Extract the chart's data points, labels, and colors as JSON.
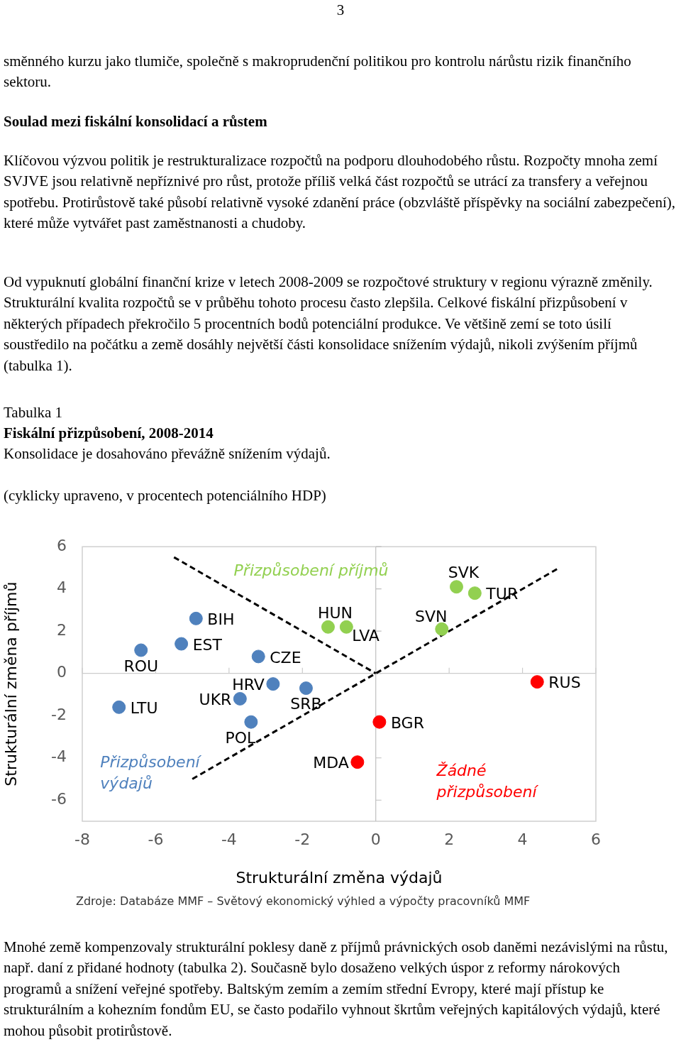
{
  "chart_data": {
    "type": "scatter",
    "title": "Fiskální přizpůsobení, 2008-2014",
    "subtitle": "Konsolidace je dosahováno převážně snížením výdajů.\n\n(cyklicky upraveno, v procentech potenciálního HDP)",
    "xlabel": "Strukturální změna výdajů",
    "ylabel": "Strukturální změna příjmů",
    "xlim": [
      -8,
      6
    ],
    "xticks": [
      -8,
      -6,
      -4,
      -2,
      0,
      2,
      4,
      6
    ],
    "ylim": [
      -7,
      6
    ],
    "yticks": [
      -6,
      -4,
      -2,
      0,
      2,
      4,
      6
    ],
    "grid": false,
    "legend": false,
    "marker": "circle",
    "ref_lines": [
      {
        "axis": "x",
        "value": 0,
        "color": "#bfbfbf"
      },
      {
        "axis": "y",
        "value": 0,
        "color": "#cccccc"
      }
    ],
    "series": [
      {
        "color": "#4f81bd",
        "x": [
          -4.9,
          -5.3,
          -6.4,
          -3.2,
          -2.8,
          -1.9,
          -3.7,
          -7.0,
          -3.4
        ],
        "values": [
          2.6,
          1.4,
          1.1,
          0.8,
          -0.5,
          -0.7,
          -1.2,
          -1.6,
          -2.3
        ],
        "value_labels": [
          "BIH",
          "EST",
          "ROU",
          "CZE",
          "HRV",
          "SRB",
          "UKR",
          "LTU",
          "POL"
        ]
      },
      {
        "color": "#92d050",
        "x": [
          -1.3,
          -0.8,
          2.2,
          2.7,
          1.8
        ],
        "values": [
          2.2,
          2.2,
          4.1,
          3.8,
          2.1
        ],
        "value_labels": [
          "HUN",
          "LVA",
          "SVK",
          "TUR",
          "SVN"
        ]
      },
      {
        "color": "#ff0000",
        "x": [
          4.4,
          0.1,
          -0.5
        ],
        "values": [
          -0.4,
          -2.3,
          -4.2
        ],
        "value_labels": [
          "RUS",
          "BGR",
          "MDA"
        ]
      },
      {
        "type": "line",
        "color": "#000000",
        "line_style": "dashed",
        "marker": "none",
        "x": [
          -5.5,
          0
        ],
        "values": [
          5.5,
          0
        ]
      },
      {
        "type": "line",
        "color": "#000000",
        "line_style": "dashed",
        "marker": "none",
        "x": [
          -5,
          5
        ],
        "values": [
          -5,
          5
        ]
      }
    ],
    "annotations": [
      "3",
      "směnného kurzu jako tlumiče, společně s makroprudenční politikou pro kontrolu nárůstu rizik finančního sektoru.",
      "Soulad mezi fiskální konsolidací a růstem",
      "Klíčovou výzvou politik je restrukturalizace rozpočtů na podporu dlouhodobého růstu. Rozpočty mnoha zemí SVJVE jsou relativně nepříznivé pro růst, protože příliš velká část rozpočtů se utrácí za transfery a veřejnou spotřebu. Protirůstově také působí relativně vysoké zdanění práce (obzvláště příspěvky na sociální zabezpečení), které může vytvářet past zaměstnanosti a chudoby.",
      "Od vypuknutí globální finanční krize v letech 2008-2009 se rozpočtové struktury v regionu výrazně změnily. Strukturální kvalita rozpočtů se v průběhu tohoto procesu často zlepšila. Celkové fiskální přizpůsobení v některých případech překročilo 5 procentních bodů potenciální produkce. Ve většině zemí se toto úsilí soustředilo na počátku a země dosáhly největší části konsolidace snížením výdajů, nikoli zvýšením příjmů (tabulka 1).",
      "Tabulka 1",
      "Přizpůsobení\nvýdajů",
      "Přizpůsobení příjmů",
      "Žádné\npřizpůsobení",
      "Zdroje: Databáze MMF – Světový ekonomický výhled a výpočty pracovníků MMF",
      "Mnohé země kompenzovaly strukturální poklesy daně z příjmů právnických osob daněmi nezávislými na růstu, např. daní z přidané hodnoty (tabulka 2). Současně bylo dosaženo velkých úspor z reformy nárokových programů a snížení veřejné spotřeby. Baltským zemím a zemím střední Evropy, které mají přístup ke strukturálním a kohezním fondům EU, se často podařilo vyhnout škrtům veřejných kapitálových výdajů, které mohou působit protirůstově."
    ]
  }
}
